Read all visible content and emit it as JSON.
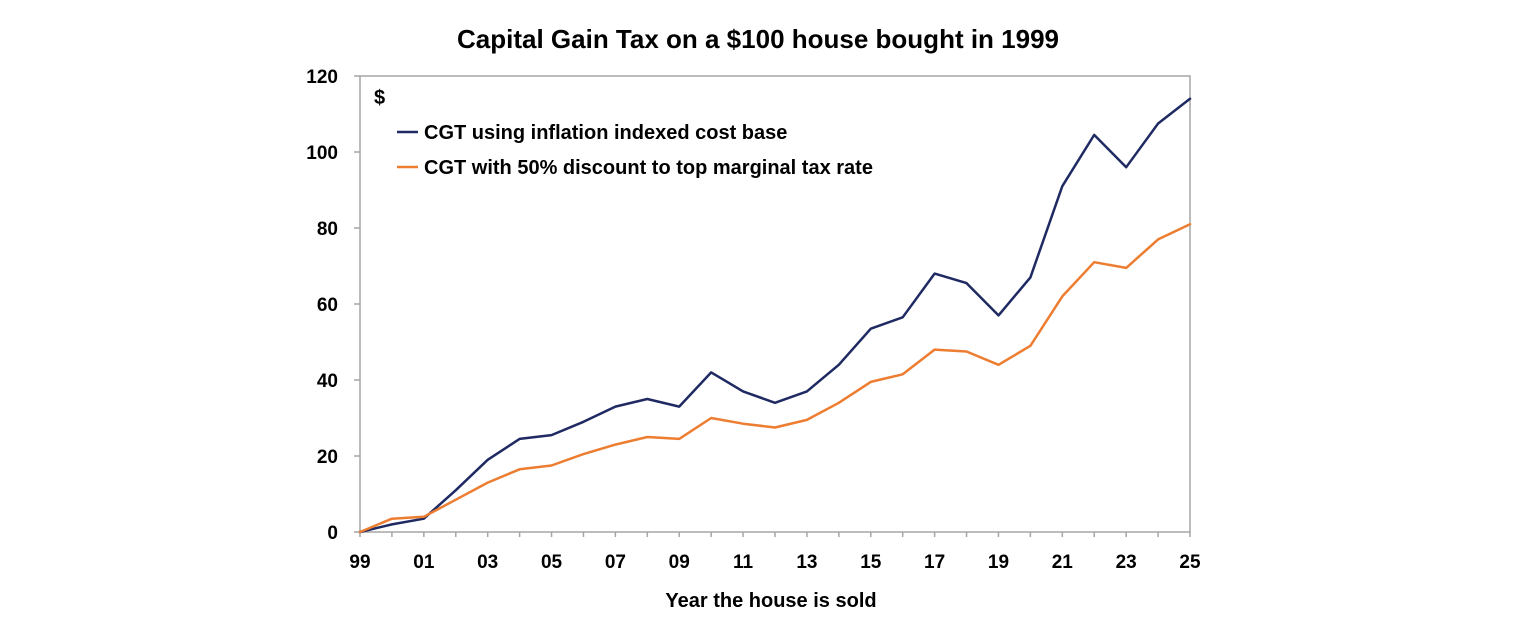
{
  "chart_data": {
    "type": "line",
    "title": "Capital Gain Tax on a $100 house bought in 1999",
    "xlabel": "Year the house is sold",
    "ylabel": "$",
    "x": [
      1999,
      2000,
      2001,
      2002,
      2003,
      2004,
      2005,
      2006,
      2007,
      2008,
      2009,
      2010,
      2011,
      2012,
      2013,
      2014,
      2015,
      2016,
      2017,
      2018,
      2019,
      2020,
      2021,
      2022,
      2023,
      2024,
      2025
    ],
    "xlim": [
      1999,
      2025
    ],
    "ylim": [
      0,
      120
    ],
    "x_tick_labels": [
      "99",
      "01",
      "03",
      "05",
      "07",
      "09",
      "11",
      "13",
      "15",
      "17",
      "19",
      "21",
      "23",
      "25"
    ],
    "y_tick_labels": [
      "0",
      "20",
      "40",
      "60",
      "80",
      "100",
      "120"
    ],
    "y_ticks": [
      0,
      20,
      40,
      60,
      80,
      100,
      120
    ],
    "grid": false,
    "legend_position": "top-left",
    "series": [
      {
        "name": "CGT using inflation indexed cost base",
        "color": "#1f2a63",
        "values": [
          0,
          2,
          3.5,
          11,
          19,
          24.5,
          25.5,
          29,
          33,
          35,
          33,
          42,
          37,
          34,
          37,
          44,
          53.5,
          56.5,
          68,
          65.5,
          57,
          67,
          91,
          104.5,
          96,
          107.5,
          114
        ]
      },
      {
        "name": "CGT with 50% discount to top marginal tax rate",
        "color": "#ed7d31",
        "values": [
          0,
          3.5,
          4,
          8.5,
          13,
          16.5,
          17.5,
          20.5,
          23,
          25,
          24.5,
          30,
          28.5,
          27.5,
          29.5,
          34,
          39.5,
          41.5,
          48,
          47.5,
          44,
          49,
          62,
          71,
          69.5,
          77,
          81
        ]
      }
    ]
  }
}
